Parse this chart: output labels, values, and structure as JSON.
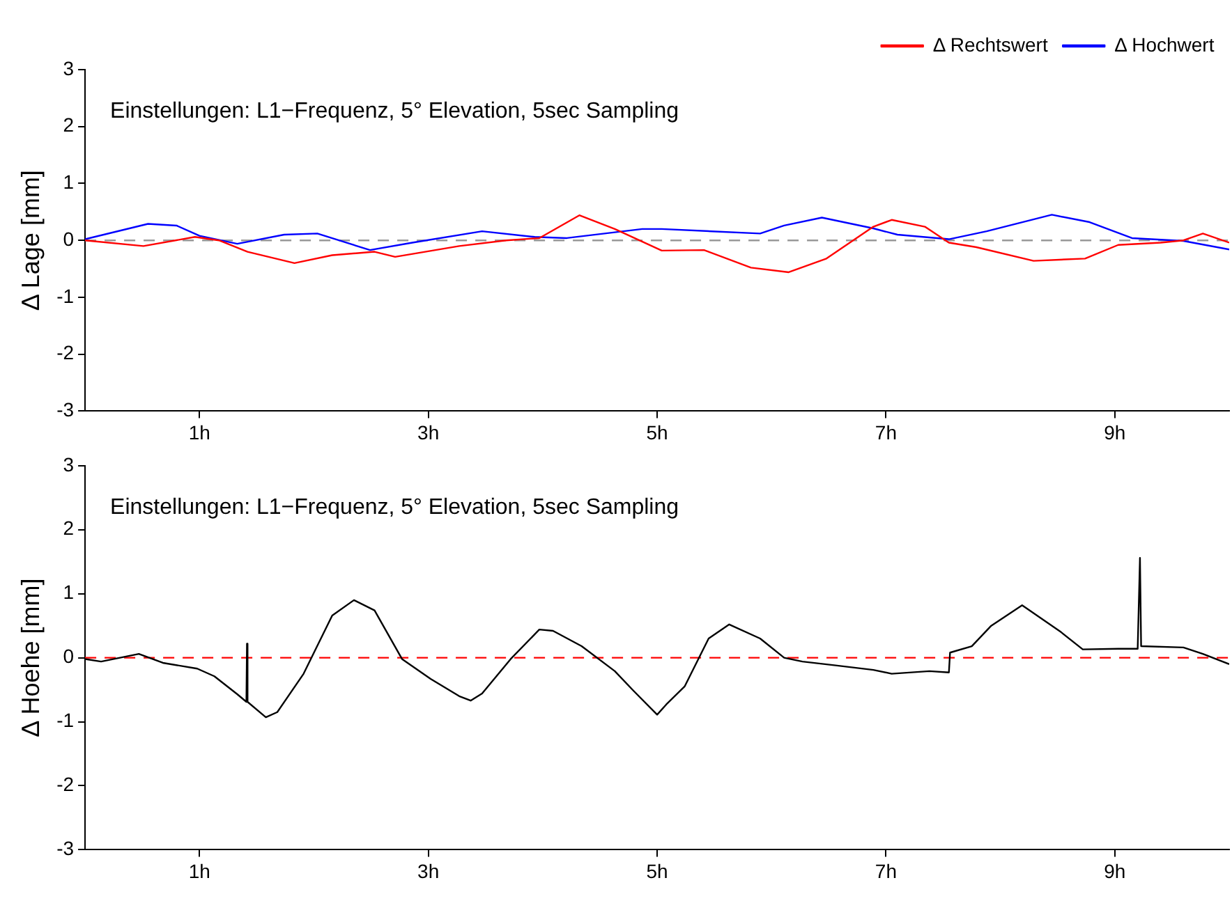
{
  "chart_data": [
    {
      "type": "line",
      "ylabel": "Δ Lage [mm]",
      "annotations": [
        "Einstellungen: L1−Frequenz, 5° Elevation, 5sec Sampling"
      ],
      "xlim": [
        0,
        10
      ],
      "xticks": [
        {
          "value": 1,
          "label": "1h"
        },
        {
          "value": 3,
          "label": "3h"
        },
        {
          "value": 5,
          "label": "5h"
        },
        {
          "value": 7,
          "label": "7h"
        },
        {
          "value": 9,
          "label": "9h"
        }
      ],
      "ylim": [
        -3,
        3
      ],
      "yticks": [
        -3,
        -2,
        -1,
        0,
        1,
        2,
        3
      ],
      "grid": false,
      "legend": "top right",
      "line_style": "solid",
      "marker": "none",
      "ref_lines": [
        {
          "axis": "y",
          "value": 0,
          "color": "#999999",
          "line_style": "dashed"
        }
      ],
      "series": [
        {
          "name": "Δ Rechtswert",
          "color": "#ff0000",
          "x": [
            0,
            0.51,
            0.96,
            1.17,
            1.42,
            1.83,
            2.16,
            2.53,
            2.71,
            3.27,
            3.68,
            3.97,
            4.32,
            4.63,
            5.04,
            5.41,
            5.82,
            6.15,
            6.48,
            6.89,
            7.05,
            7.34,
            7.55,
            7.79,
            8.29,
            8.74,
            9.03,
            9.4,
            9.6,
            9.77,
            10
          ],
          "values": [
            0,
            -0.1,
            0.06,
            0,
            -0.2,
            -0.4,
            -0.26,
            -0.2,
            -0.29,
            -0.1,
            0,
            0.04,
            0.44,
            0.2,
            -0.18,
            -0.17,
            -0.48,
            -0.56,
            -0.32,
            0.24,
            0.36,
            0.24,
            -0.04,
            -0.12,
            -0.36,
            -0.32,
            -0.08,
            -0.04,
            0,
            0.12,
            -0.04
          ]
        },
        {
          "name": "Δ Hochwert",
          "color": "#0000ff",
          "x": [
            0,
            0.55,
            0.8,
            1,
            1.33,
            1.74,
            2.03,
            2.49,
            2.86,
            3.47,
            3.93,
            4.21,
            4.87,
            5.04,
            5.9,
            6.11,
            6.44,
            6.89,
            7.1,
            7.55,
            7.88,
            8.45,
            8.78,
            9.15,
            9.6,
            10
          ],
          "values": [
            0.02,
            0.29,
            0.26,
            0.08,
            -0.06,
            0.1,
            0.12,
            -0.17,
            -0.04,
            0.16,
            0.06,
            0.04,
            0.2,
            0.2,
            0.12,
            0.26,
            0.4,
            0.21,
            0.1,
            0.02,
            0.16,
            0.45,
            0.32,
            0.04,
            -0.01,
            -0.16
          ]
        }
      ]
    },
    {
      "type": "line",
      "ylabel": "Δ Hoehe [mm]",
      "annotations": [
        "Einstellungen: L1−Frequenz, 5° Elevation, 5sec Sampling"
      ],
      "xlim": [
        0,
        10
      ],
      "xticks": [
        {
          "value": 1,
          "label": "1h"
        },
        {
          "value": 3,
          "label": "3h"
        },
        {
          "value": 5,
          "label": "5h"
        },
        {
          "value": 7,
          "label": "7h"
        },
        {
          "value": 9,
          "label": "9h"
        }
      ],
      "ylim": [
        -3,
        3
      ],
      "yticks": [
        -3,
        -2,
        -1,
        0,
        1,
        2,
        3
      ],
      "grid": false,
      "legend": false,
      "line_style": "solid",
      "marker": "none",
      "ref_lines": [
        {
          "axis": "y",
          "value": 0,
          "color": "#ff0000",
          "line_style": "dashed"
        }
      ],
      "series": [
        {
          "color": "#000000",
          "x": [
            0,
            0.14,
            0.47,
            0.68,
            0.98,
            1.13,
            1.33,
            1.41,
            1.415,
            1.42,
            1.58,
            1.68,
            1.91,
            2.16,
            2.35,
            2.53,
            2.77,
            3.02,
            3.27,
            3.37,
            3.47,
            3.72,
            3.97,
            4.09,
            4.34,
            4.63,
            4.79,
            5,
            5.08,
            5.24,
            5.45,
            5.63,
            5.9,
            6.11,
            6.27,
            6.56,
            6.89,
            7.05,
            7.38,
            7.55,
            7.56,
            7.75,
            7.92,
            8.19,
            8.53,
            8.72,
            9.03,
            9.2,
            9.22,
            9.23,
            9.6,
            9.77,
            10
          ],
          "values": [
            -0.02,
            -0.06,
            0.06,
            -0.08,
            -0.17,
            -0.29,
            -0.57,
            -0.69,
            0.22,
            -0.69,
            -0.93,
            -0.85,
            -0.25,
            0.66,
            0.9,
            0.74,
            -0.02,
            -0.33,
            -0.6,
            -0.67,
            -0.56,
            -0.02,
            0.44,
            0.42,
            0.18,
            -0.21,
            -0.51,
            -0.89,
            -0.73,
            -0.45,
            0.3,
            0.52,
            0.3,
            0,
            -0.06,
            -0.12,
            -0.19,
            -0.25,
            -0.21,
            -0.23,
            0.08,
            0.18,
            0.5,
            0.82,
            0.4,
            0.13,
            0.14,
            0.14,
            1.56,
            0.18,
            0.16,
            0.06,
            -0.1
          ]
        }
      ]
    }
  ]
}
